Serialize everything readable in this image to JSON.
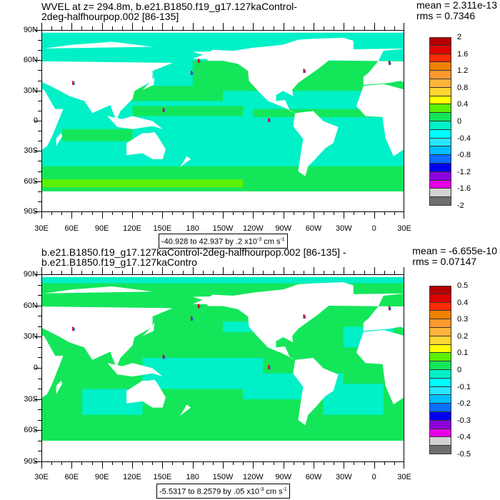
{
  "panels": [
    {
      "title": "WVEL at z= 294.8m, b.e21.B1850.f19_g17.127kaControl-2deg-halfhourpop.002 [86-135]",
      "mean": "mean = 2.311e-13",
      "rms": "rms = 0.7346",
      "info": {
        "range": "-40.928 to 42.937 by .2 x10",
        "exp": "-3",
        "unit": " cm s",
        "unit_exp": "-1"
      },
      "colorbar_labels": [
        "2",
        "1.6",
        "1.2",
        "0.8",
        "0.4",
        "0",
        "-0.4",
        "-0.8",
        "-1.2",
        "-1.6",
        "-2"
      ]
    },
    {
      "title": "b.e21.B1850.f19_g17.127kaControl-2deg-halfhourpop.002 [86-135] - b.e21.B1850.f19_g17.127kaContro",
      "mean": "mean = -6.655e-10",
      "rms": "rms = 0.07147",
      "info": {
        "range": "-5.5317 to 8.2579 by .05 x10",
        "exp": "-3",
        "unit": " cm s",
        "unit_exp": "-1"
      },
      "colorbar_labels": [
        "0.5",
        "0.4",
        "0.3",
        "0.2",
        "0.1",
        "0",
        "-0.1",
        "-0.2",
        "-0.3",
        "-0.4",
        "-0.5"
      ]
    }
  ],
  "lat_labels": [
    "90N",
    "60N",
    "30N",
    "0",
    "30S",
    "60S",
    "90S"
  ],
  "lon_labels": [
    "30E",
    "60E",
    "90E",
    "120E",
    "150E",
    "180",
    "150W",
    "120W",
    "90W",
    "60W",
    "30W",
    "0",
    "30E"
  ],
  "colorbar_colors": [
    "#b40000",
    "#dc0000",
    "#ff2a00",
    "#f08000",
    "#ff9a30",
    "#ffb43c",
    "#ffd632",
    "#ffff00",
    "#5af000",
    "#14e65a",
    "#00f0c8",
    "#00ffff",
    "#28e6ff",
    "#00beff",
    "#0a6eff",
    "#0000f0",
    "#8c00dc",
    "#e600e6",
    "#d2d2d2",
    "#6e6e6e"
  ],
  "chart_data": {
    "type": "heatmap",
    "projection": "cylindrical equidistant",
    "lon_range": [
      "30E",
      "30E"
    ],
    "lat_range": [
      "90S",
      "90N"
    ],
    "grid": false,
    "legend": "right"
  }
}
